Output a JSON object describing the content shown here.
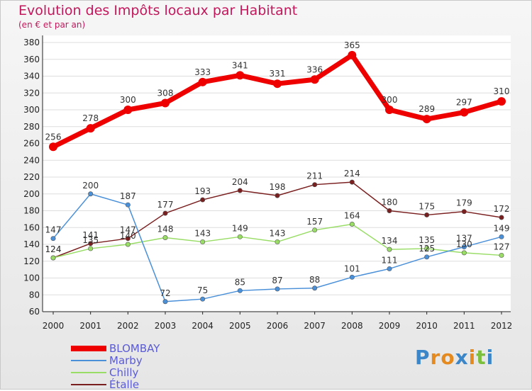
{
  "chart_title": "Evolution des Impôts locaux par Habitant",
  "chart_subtitle": "(en € et par an)",
  "logo_text": "Proxiti",
  "chart_data": {
    "type": "line",
    "title": "Evolution des Impôts locaux par Habitant",
    "subtitle": "(en € et par an)",
    "xlabel": "",
    "ylabel": "",
    "ylim": [
      60,
      380
    ],
    "y_ticks": [
      60,
      80,
      100,
      120,
      140,
      160,
      180,
      200,
      220,
      240,
      260,
      280,
      300,
      320,
      340,
      360,
      380
    ],
    "grid": true,
    "legend_position": "bottom-left",
    "categories": [
      "2000",
      "2001",
      "2002",
      "2003",
      "2004",
      "2005",
      "2006",
      "2007",
      "2008",
      "2009",
      "2010",
      "2011",
      "2012"
    ],
    "series": [
      {
        "name": "BLOMBAY",
        "color": "#ee0000",
        "values": [
          256,
          278,
          300,
          308,
          333,
          341,
          331,
          336,
          365,
          300,
          289,
          297,
          310
        ]
      },
      {
        "name": "Marby",
        "color": "#4a90d9",
        "values": [
          147,
          200,
          187,
          72,
          75,
          85,
          87,
          88,
          101,
          111,
          125,
          137,
          149
        ]
      },
      {
        "name": "Chilly",
        "color": "#99dd66",
        "values": [
          124,
          135,
          140,
          148,
          143,
          149,
          143,
          157,
          164,
          134,
          135,
          130,
          127
        ]
      },
      {
        "name": "Étalle",
        "color": "#7a1f1f",
        "values": [
          124,
          141,
          147,
          177,
          193,
          204,
          198,
          211,
          214,
          180,
          175,
          179,
          172
        ]
      }
    ]
  }
}
